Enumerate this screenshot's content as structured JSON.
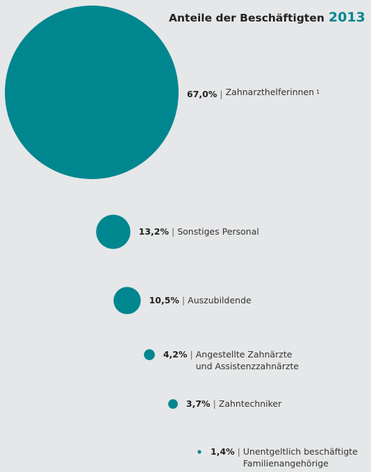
{
  "chart_data": {
    "type": "bubble",
    "title": "Anteile der Beschäftigten",
    "year": "2013",
    "separator": "|",
    "footnote": "1",
    "color": "#00868f",
    "categories": [
      "Zahnarzthelferinnen",
      "Sonstiges Personal",
      "Auszubildende",
      "Angestellte Zahnärzte\nund Assistenzzahnärzte",
      "Zahntechniker",
      "Unentgeltlich beschäftigte\nFamilienangehörige"
    ],
    "values": [
      67.0,
      13.2,
      10.5,
      4.2,
      3.7,
      1.4
    ],
    "value_labels": [
      "67,0%",
      "13,2%",
      "10,5%",
      "4,2%",
      "3,7%",
      "1,4%"
    ]
  }
}
